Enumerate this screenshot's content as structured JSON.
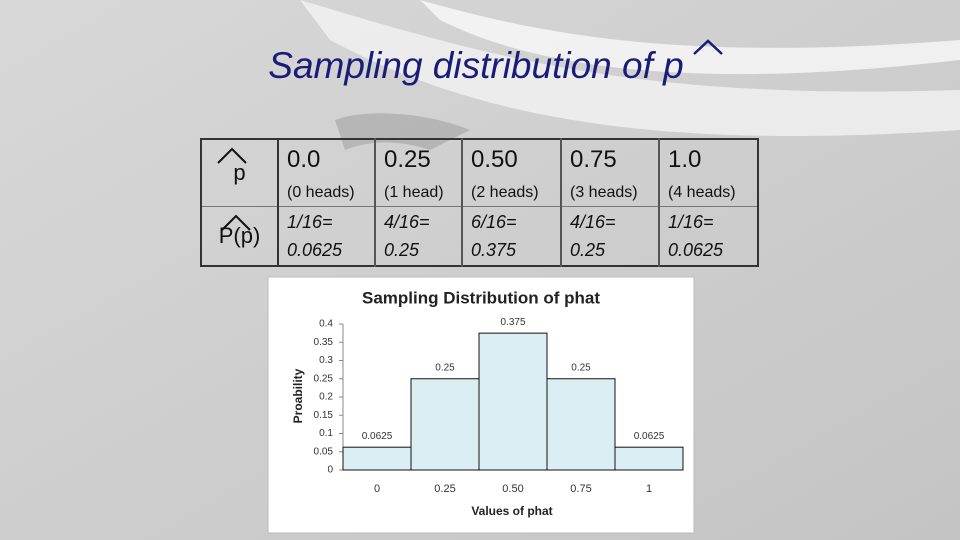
{
  "title": "Sampling distribution of p",
  "table": {
    "row_headers": [
      "p",
      "P(p)"
    ],
    "values": [
      "0.0",
      "0.25",
      "0.50",
      "0.75",
      "1.0"
    ],
    "heads": [
      "(0 heads)",
      "(1 head)",
      "(2 heads)",
      "(3 heads)",
      "(4 heads)"
    ],
    "probs": [
      [
        "1/16=",
        "0.0625"
      ],
      [
        "4/16=",
        "0.25"
      ],
      [
        "6/16=",
        "0.375"
      ],
      [
        "4/16=",
        "0.25"
      ],
      [
        "1/16=",
        "0.0625"
      ]
    ]
  },
  "chart_data": {
    "type": "bar",
    "title": "Sampling Distribution of phat",
    "x_label": "Values of phat",
    "y_label": "Proability",
    "categories": [
      "0",
      "0.25",
      "0.50",
      "0.75",
      "1"
    ],
    "values": [
      0.0625,
      0.25,
      0.375,
      0.25,
      0.0625
    ],
    "color": "#daeef3",
    "ylim": [
      0,
      0.4
    ],
    "yticks": [
      0,
      0.05,
      0.1,
      0.15,
      0.2,
      0.25,
      0.3,
      0.35,
      0.4
    ]
  }
}
